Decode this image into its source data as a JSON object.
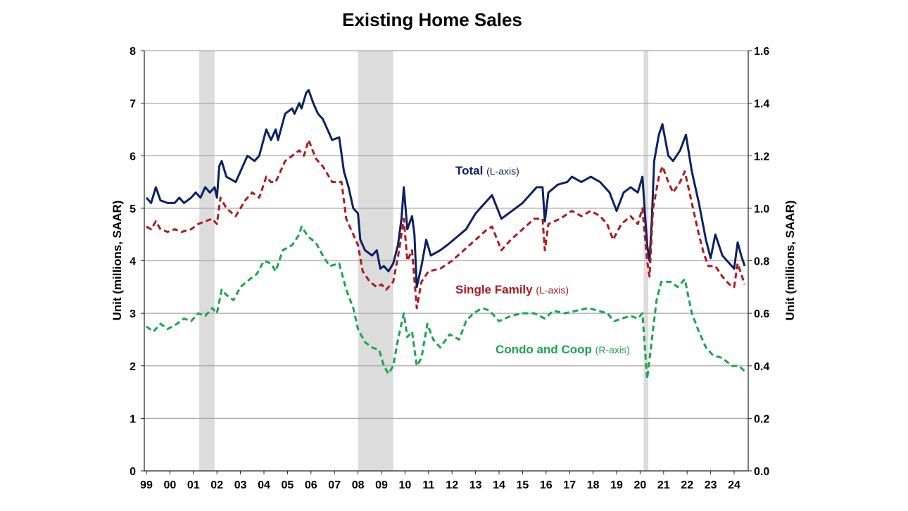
{
  "chart_data": {
    "type": "line",
    "title": "Existing Home Sales",
    "ylabel_left": "Unit (millions, SAAR)",
    "ylabel_right": "Unit (millions, SAAR)",
    "ylim_left": [
      0,
      8
    ],
    "ylim_right": [
      0,
      1.6
    ],
    "yticks_left": [
      "0",
      "1",
      "2",
      "3",
      "4",
      "5",
      "6",
      "7",
      "8"
    ],
    "yticks_right": [
      "0.0",
      "0.2",
      "0.4",
      "0.6",
      "0.8",
      "1.0",
      "1.2",
      "1.4",
      "1.6"
    ],
    "xticks": [
      "99",
      "00",
      "01",
      "02",
      "03",
      "04",
      "05",
      "06",
      "07",
      "08",
      "09",
      "10",
      "11",
      "12",
      "13",
      "14",
      "15",
      "16",
      "17",
      "18",
      "19",
      "20",
      "21",
      "22",
      "23",
      "24"
    ],
    "grid": "horizontal",
    "recessions": [
      [
        2001.25,
        2001.9
      ],
      [
        2008.0,
        2009.5
      ],
      [
        2020.15,
        2020.35
      ]
    ],
    "colors": {
      "total": "#0c2163",
      "single_family": "#b0191e",
      "condo": "#1aa54b",
      "recession": "#dcdcdc"
    },
    "series": [
      {
        "name": "Total",
        "axis_note": "(L-axis)",
        "axis": "left",
        "style": "solid",
        "points": [
          [
            1999,
            5.2
          ],
          [
            1999.2,
            5.1
          ],
          [
            1999.4,
            5.4
          ],
          [
            1999.6,
            5.15
          ],
          [
            1999.9,
            5.1
          ],
          [
            2000.2,
            5.1
          ],
          [
            2000.4,
            5.2
          ],
          [
            2000.6,
            5.1
          ],
          [
            2000.9,
            5.2
          ],
          [
            2001.1,
            5.3
          ],
          [
            2001.3,
            5.2
          ],
          [
            2001.5,
            5.4
          ],
          [
            2001.7,
            5.3
          ],
          [
            2001.9,
            5.4
          ],
          [
            2002.0,
            5.2
          ],
          [
            2002.1,
            5.8
          ],
          [
            2002.2,
            5.9
          ],
          [
            2002.4,
            5.6
          ],
          [
            2002.8,
            5.5
          ],
          [
            2003.1,
            5.8
          ],
          [
            2003.3,
            6.0
          ],
          [
            2003.6,
            5.9
          ],
          [
            2003.8,
            6.0
          ],
          [
            2004.1,
            6.5
          ],
          [
            2004.3,
            6.3
          ],
          [
            2004.5,
            6.5
          ],
          [
            2004.6,
            6.3
          ],
          [
            2004.9,
            6.8
          ],
          [
            2005.2,
            6.9
          ],
          [
            2005.3,
            6.8
          ],
          [
            2005.5,
            7.0
          ],
          [
            2005.6,
            6.9
          ],
          [
            2005.8,
            7.2
          ],
          [
            2005.9,
            7.25
          ],
          [
            2006.1,
            7.0
          ],
          [
            2006.3,
            6.8
          ],
          [
            2006.5,
            6.7
          ],
          [
            2006.7,
            6.5
          ],
          [
            2006.9,
            6.3
          ],
          [
            2007.2,
            6.35
          ],
          [
            2007.4,
            5.7
          ],
          [
            2007.6,
            5.4
          ],
          [
            2007.8,
            5.0
          ],
          [
            2008.0,
            4.9
          ],
          [
            2008.1,
            4.4
          ],
          [
            2008.3,
            4.2
          ],
          [
            2008.6,
            4.1
          ],
          [
            2008.8,
            4.2
          ],
          [
            2008.95,
            3.85
          ],
          [
            2009.1,
            3.9
          ],
          [
            2009.3,
            3.8
          ],
          [
            2009.5,
            3.95
          ],
          [
            2009.7,
            4.3
          ],
          [
            2009.85,
            4.8
          ],
          [
            2009.95,
            5.4
          ],
          [
            2010.1,
            4.6
          ],
          [
            2010.3,
            4.85
          ],
          [
            2010.4,
            4.5
          ],
          [
            2010.5,
            3.5
          ],
          [
            2010.7,
            3.9
          ],
          [
            2010.9,
            4.4
          ],
          [
            2011.1,
            4.1
          ],
          [
            2011.5,
            4.2
          ],
          [
            2011.8,
            4.3
          ],
          [
            2012.2,
            4.45
          ],
          [
            2012.6,
            4.6
          ],
          [
            2013.0,
            4.9
          ],
          [
            2013.4,
            5.1
          ],
          [
            2013.7,
            5.25
          ],
          [
            2014.1,
            4.8
          ],
          [
            2014.4,
            4.9
          ],
          [
            2014.7,
            5.0
          ],
          [
            2015.0,
            5.1
          ],
          [
            2015.3,
            5.25
          ],
          [
            2015.6,
            5.4
          ],
          [
            2015.85,
            5.4
          ],
          [
            2015.95,
            4.75
          ],
          [
            2016.1,
            5.3
          ],
          [
            2016.5,
            5.45
          ],
          [
            2016.9,
            5.5
          ],
          [
            2017.1,
            5.6
          ],
          [
            2017.5,
            5.5
          ],
          [
            2017.9,
            5.6
          ],
          [
            2018.3,
            5.5
          ],
          [
            2018.7,
            5.3
          ],
          [
            2019.0,
            4.95
          ],
          [
            2019.3,
            5.3
          ],
          [
            2019.6,
            5.4
          ],
          [
            2019.9,
            5.3
          ],
          [
            2020.1,
            5.6
          ],
          [
            2020.3,
            4.3
          ],
          [
            2020.4,
            4.0
          ],
          [
            2020.5,
            4.8
          ],
          [
            2020.6,
            5.9
          ],
          [
            2020.8,
            6.4
          ],
          [
            2020.95,
            6.6
          ],
          [
            2021.2,
            6.0
          ],
          [
            2021.4,
            5.9
          ],
          [
            2021.7,
            6.1
          ],
          [
            2021.95,
            6.4
          ],
          [
            2022.2,
            5.7
          ],
          [
            2022.5,
            5.1
          ],
          [
            2022.8,
            4.4
          ],
          [
            2023.0,
            4.05
          ],
          [
            2023.2,
            4.5
          ],
          [
            2023.5,
            4.1
          ],
          [
            2023.8,
            3.95
          ],
          [
            2024.0,
            3.85
          ],
          [
            2024.15,
            4.35
          ],
          [
            2024.3,
            4.1
          ],
          [
            2024.45,
            3.9
          ]
        ]
      },
      {
        "name": "Single Family",
        "axis_note": "(L-axis)",
        "axis": "left",
        "style": "dashed",
        "points": [
          [
            1999,
            4.65
          ],
          [
            1999.2,
            4.6
          ],
          [
            1999.4,
            4.75
          ],
          [
            1999.6,
            4.6
          ],
          [
            1999.9,
            4.55
          ],
          [
            2000.2,
            4.6
          ],
          [
            2000.5,
            4.55
          ],
          [
            2000.9,
            4.6
          ],
          [
            2001.2,
            4.7
          ],
          [
            2001.5,
            4.75
          ],
          [
            2001.8,
            4.8
          ],
          [
            2002.0,
            4.7
          ],
          [
            2002.15,
            5.2
          ],
          [
            2002.4,
            5.0
          ],
          [
            2002.8,
            4.85
          ],
          [
            2003.2,
            5.15
          ],
          [
            2003.5,
            5.3
          ],
          [
            2003.8,
            5.2
          ],
          [
            2004.1,
            5.6
          ],
          [
            2004.3,
            5.5
          ],
          [
            2004.5,
            5.5
          ],
          [
            2004.9,
            5.9
          ],
          [
            2005.2,
            6.0
          ],
          [
            2005.5,
            6.1
          ],
          [
            2005.7,
            6.0
          ],
          [
            2005.9,
            6.3
          ],
          [
            2006.2,
            5.95
          ],
          [
            2006.5,
            5.8
          ],
          [
            2006.9,
            5.5
          ],
          [
            2007.3,
            5.5
          ],
          [
            2007.5,
            4.8
          ],
          [
            2007.8,
            4.5
          ],
          [
            2008.0,
            4.3
          ],
          [
            2008.2,
            3.8
          ],
          [
            2008.5,
            3.6
          ],
          [
            2008.8,
            3.5
          ],
          [
            2009.0,
            3.55
          ],
          [
            2009.2,
            3.45
          ],
          [
            2009.5,
            3.6
          ],
          [
            2009.75,
            4.2
          ],
          [
            2009.95,
            4.8
          ],
          [
            2010.1,
            4.0
          ],
          [
            2010.3,
            4.2
          ],
          [
            2010.5,
            3.1
          ],
          [
            2010.7,
            3.6
          ],
          [
            2011.0,
            3.8
          ],
          [
            2011.5,
            3.85
          ],
          [
            2012.0,
            4.0
          ],
          [
            2012.5,
            4.2
          ],
          [
            2013.0,
            4.4
          ],
          [
            2013.5,
            4.6
          ],
          [
            2013.7,
            4.65
          ],
          [
            2014.1,
            4.2
          ],
          [
            2014.5,
            4.4
          ],
          [
            2015.0,
            4.6
          ],
          [
            2015.5,
            4.8
          ],
          [
            2015.85,
            4.8
          ],
          [
            2015.95,
            4.2
          ],
          [
            2016.1,
            4.7
          ],
          [
            2016.6,
            4.8
          ],
          [
            2017.1,
            4.95
          ],
          [
            2017.5,
            4.85
          ],
          [
            2017.9,
            4.95
          ],
          [
            2018.3,
            4.85
          ],
          [
            2018.6,
            4.7
          ],
          [
            2018.85,
            4.4
          ],
          [
            2019.2,
            4.7
          ],
          [
            2019.6,
            4.85
          ],
          [
            2019.9,
            4.7
          ],
          [
            2020.1,
            5.0
          ],
          [
            2020.3,
            4.0
          ],
          [
            2020.4,
            3.7
          ],
          [
            2020.55,
            5.0
          ],
          [
            2020.8,
            5.6
          ],
          [
            2020.95,
            5.8
          ],
          [
            2021.2,
            5.5
          ],
          [
            2021.4,
            5.3
          ],
          [
            2021.7,
            5.5
          ],
          [
            2021.9,
            5.7
          ],
          [
            2022.2,
            5.1
          ],
          [
            2022.5,
            4.5
          ],
          [
            2022.7,
            4.15
          ],
          [
            2022.9,
            3.9
          ],
          [
            2023.2,
            3.9
          ],
          [
            2023.5,
            3.7
          ],
          [
            2023.8,
            3.55
          ],
          [
            2024.0,
            3.5
          ],
          [
            2024.15,
            3.95
          ],
          [
            2024.3,
            3.75
          ],
          [
            2024.45,
            3.55
          ]
        ]
      },
      {
        "name": "Condo and Coop",
        "axis_note": "(R-axis)",
        "axis": "right",
        "style": "dashed",
        "points": [
          [
            1999,
            0.55
          ],
          [
            1999.3,
            0.53
          ],
          [
            1999.6,
            0.56
          ],
          [
            1999.9,
            0.54
          ],
          [
            2000.3,
            0.56
          ],
          [
            2000.6,
            0.58
          ],
          [
            2000.9,
            0.57
          ],
          [
            2001.2,
            0.6
          ],
          [
            2001.5,
            0.59
          ],
          [
            2001.8,
            0.62
          ],
          [
            2002.0,
            0.6
          ],
          [
            2002.2,
            0.69
          ],
          [
            2002.4,
            0.67
          ],
          [
            2002.7,
            0.65
          ],
          [
            2003.0,
            0.7
          ],
          [
            2003.4,
            0.73
          ],
          [
            2003.7,
            0.75
          ],
          [
            2004.0,
            0.8
          ],
          [
            2004.3,
            0.79
          ],
          [
            2004.5,
            0.76
          ],
          [
            2004.8,
            0.84
          ],
          [
            2005.2,
            0.86
          ],
          [
            2005.5,
            0.9
          ],
          [
            2005.6,
            0.93
          ],
          [
            2005.9,
            0.89
          ],
          [
            2006.2,
            0.87
          ],
          [
            2006.5,
            0.82
          ],
          [
            2006.8,
            0.78
          ],
          [
            2007.2,
            0.79
          ],
          [
            2007.5,
            0.69
          ],
          [
            2007.8,
            0.62
          ],
          [
            2008.0,
            0.54
          ],
          [
            2008.3,
            0.49
          ],
          [
            2008.6,
            0.47
          ],
          [
            2008.9,
            0.46
          ],
          [
            2009.1,
            0.4
          ],
          [
            2009.3,
            0.37
          ],
          [
            2009.5,
            0.4
          ],
          [
            2009.7,
            0.5
          ],
          [
            2009.95,
            0.6
          ],
          [
            2010.1,
            0.51
          ],
          [
            2010.3,
            0.53
          ],
          [
            2010.5,
            0.4
          ],
          [
            2010.7,
            0.43
          ],
          [
            2010.95,
            0.56
          ],
          [
            2011.2,
            0.5
          ],
          [
            2011.5,
            0.47
          ],
          [
            2011.9,
            0.52
          ],
          [
            2012.3,
            0.5
          ],
          [
            2012.6,
            0.57
          ],
          [
            2012.9,
            0.6
          ],
          [
            2013.3,
            0.62
          ],
          [
            2013.6,
            0.61
          ],
          [
            2014.0,
            0.57
          ],
          [
            2014.5,
            0.59
          ],
          [
            2015.0,
            0.6
          ],
          [
            2015.5,
            0.6
          ],
          [
            2015.95,
            0.58
          ],
          [
            2016.3,
            0.61
          ],
          [
            2016.8,
            0.6
          ],
          [
            2017.3,
            0.61
          ],
          [
            2017.8,
            0.62
          ],
          [
            2018.2,
            0.61
          ],
          [
            2018.6,
            0.6
          ],
          [
            2018.9,
            0.57
          ],
          [
            2019.2,
            0.58
          ],
          [
            2019.6,
            0.59
          ],
          [
            2019.9,
            0.58
          ],
          [
            2020.1,
            0.6
          ],
          [
            2020.3,
            0.35
          ],
          [
            2020.5,
            0.5
          ],
          [
            2020.7,
            0.65
          ],
          [
            2020.9,
            0.72
          ],
          [
            2021.3,
            0.72
          ],
          [
            2021.6,
            0.7
          ],
          [
            2021.9,
            0.73
          ],
          [
            2022.2,
            0.6
          ],
          [
            2022.5,
            0.53
          ],
          [
            2022.8,
            0.47
          ],
          [
            2023.1,
            0.44
          ],
          [
            2023.5,
            0.43
          ],
          [
            2023.9,
            0.4
          ],
          [
            2024.2,
            0.4
          ],
          [
            2024.45,
            0.38
          ]
        ]
      }
    ]
  }
}
